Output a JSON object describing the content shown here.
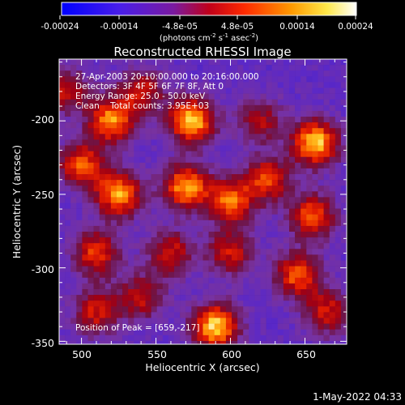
{
  "colorbar": {
    "ticks": [
      "-0.00024",
      "-0.00014",
      "-4.8e-05",
      "4.8e-05",
      "0.00014",
      "0.00024"
    ],
    "units_prefix": "(photons cm",
    "units_sup1": "-2",
    "units_mid": " s",
    "units_sup2": "-1",
    "units_mid2": " asec",
    "units_sup3": "-2",
    "units_suffix": ")"
  },
  "annotations": [
    "27-Apr-2003 20:10:00.000 to 20:16:00.000",
    "Detectors: 3F 4F 5F 6F 7F 8F, Att 0",
    "Energy Range: 25.0 - 50.0 keV",
    "Clean    Total counts: 3.95E+03"
  ],
  "peak_label": "Position of Peak = [659,-217]",
  "timestamp": "1-May-2022 04:33",
  "chart_data": {
    "type": "heatmap",
    "title": "Reconstructed RHESSI Image",
    "xlabel": "Heliocentric X (arcsec)",
    "ylabel": "Heliocentric Y (arcsec)",
    "xlim": [
      485,
      678
    ],
    "ylim": [
      -352,
      -158
    ],
    "xticks": [
      500,
      550,
      600,
      650
    ],
    "yticks": [
      -200,
      -250,
      -300,
      -350
    ],
    "colorbar_range": [
      -0.00024,
      0.00024
    ],
    "colormap": "blue-purple-red-yellow-white",
    "peak_position": [
      659,
      -217
    ],
    "sources": [
      {
        "x": 574,
        "y": -200,
        "intensity": 1.0
      },
      {
        "x": 520,
        "y": -200,
        "intensity": 0.85
      },
      {
        "x": 657,
        "y": -215,
        "intensity": 1.0
      },
      {
        "x": 500,
        "y": -230,
        "intensity": 0.75
      },
      {
        "x": 525,
        "y": -250,
        "intensity": 0.9
      },
      {
        "x": 570,
        "y": -245,
        "intensity": 0.9
      },
      {
        "x": 600,
        "y": -255,
        "intensity": 0.8
      },
      {
        "x": 625,
        "y": -240,
        "intensity": 0.7
      },
      {
        "x": 655,
        "y": -265,
        "intensity": 0.75
      },
      {
        "x": 600,
        "y": -290,
        "intensity": 0.6
      },
      {
        "x": 510,
        "y": -290,
        "intensity": 0.7
      },
      {
        "x": 560,
        "y": -290,
        "intensity": 0.6
      },
      {
        "x": 540,
        "y": -320,
        "intensity": 0.55
      },
      {
        "x": 645,
        "y": -305,
        "intensity": 0.75
      },
      {
        "x": 590,
        "y": -340,
        "intensity": 1.0
      },
      {
        "x": 510,
        "y": -330,
        "intensity": 0.6
      },
      {
        "x": 665,
        "y": -330,
        "intensity": 0.6
      },
      {
        "x": 620,
        "y": -200,
        "intensity": 0.5
      },
      {
        "x": 490,
        "y": -180,
        "intensity": 0.55
      },
      {
        "x": 540,
        "y": -180,
        "intensity": 0.6
      }
    ]
  }
}
